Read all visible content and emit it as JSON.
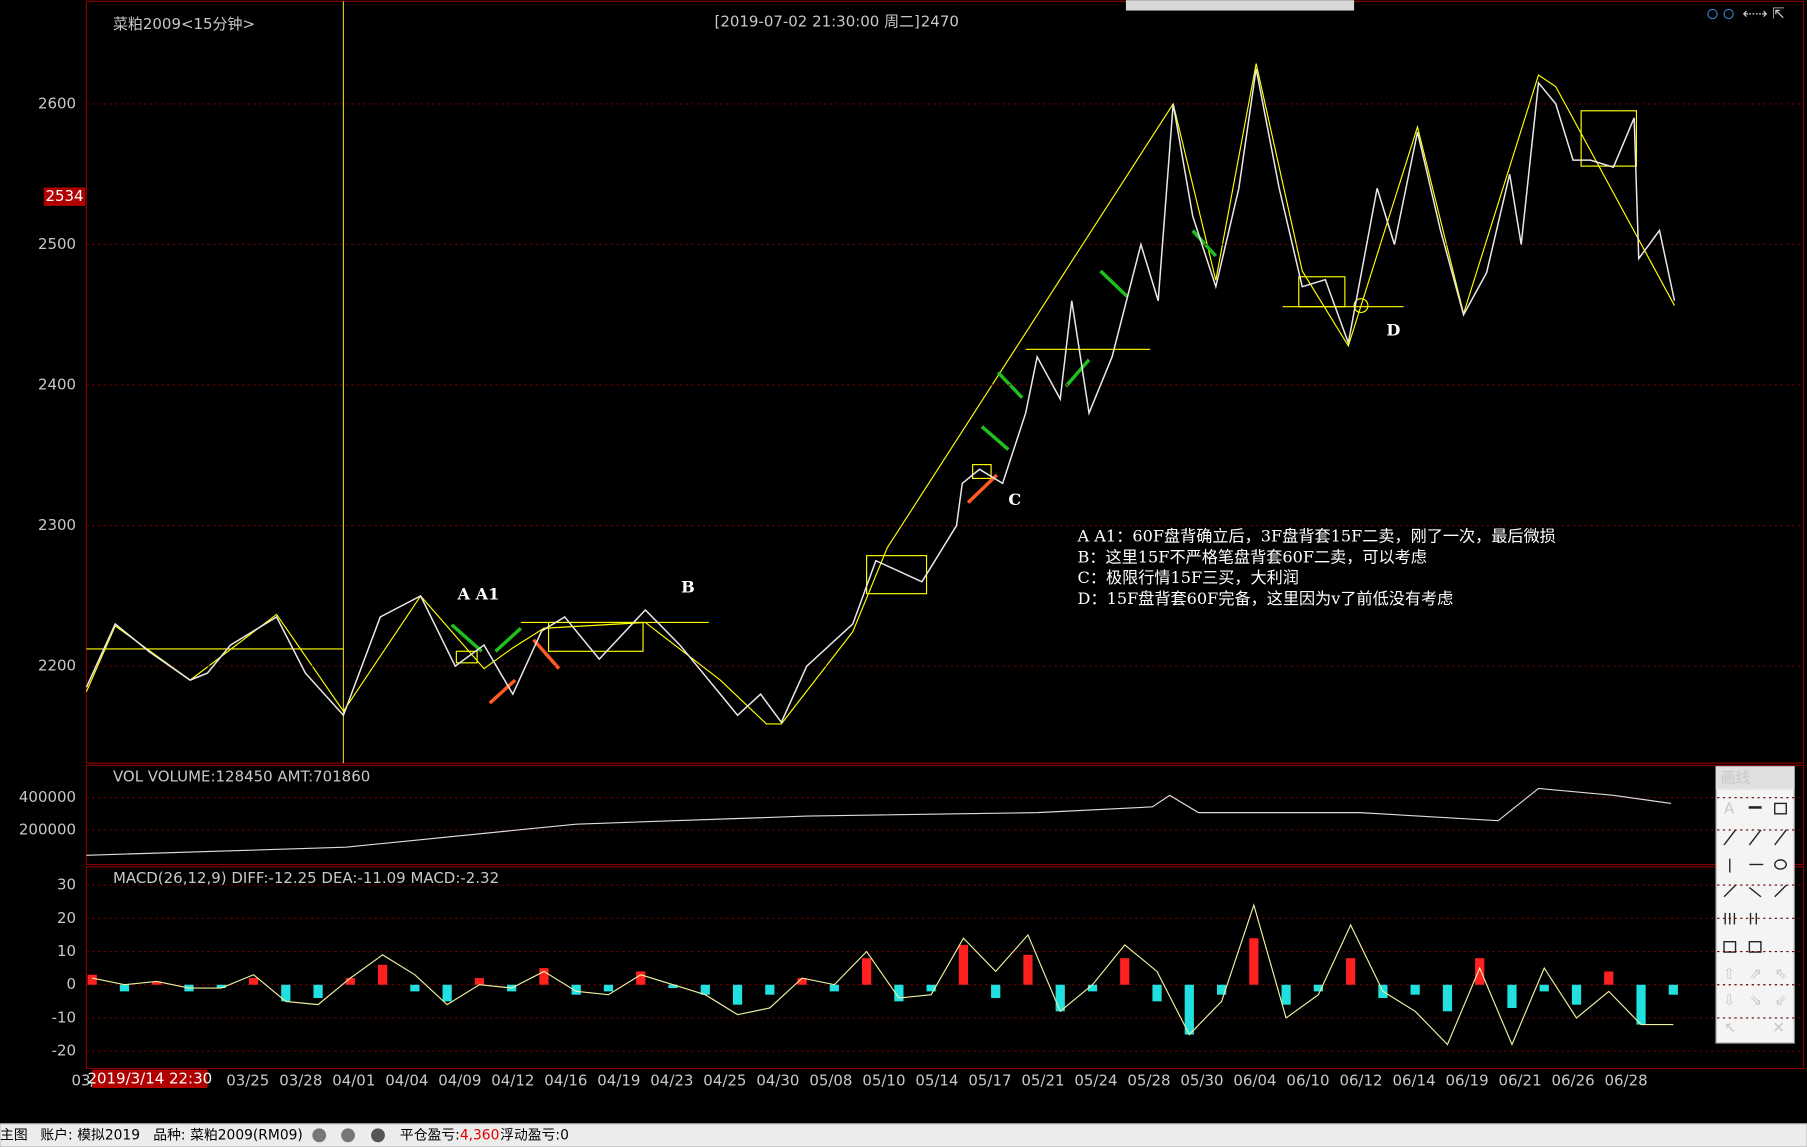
{
  "header": {
    "title": "菜粕2009<15分钟>",
    "cursor_info": "[2019-07-02  21:30:00 周二]",
    "cursor_price": 2470
  },
  "price_panel": {
    "ylim": [
      2131,
      2673
    ],
    "yticks": [
      2200,
      2300,
      2400,
      2500,
      2600
    ],
    "current_price": 2534,
    "xlim": [
      0,
      1490
    ],
    "price_path": {
      "x": [
        0,
        25,
        55,
        90,
        105,
        125,
        165,
        190,
        223,
        255,
        290,
        320,
        345,
        370,
        395,
        415,
        445,
        485,
        515,
        550,
        565,
        585,
        603,
        625,
        665,
        685,
        725,
        755,
        760,
        775,
        795,
        815,
        825,
        845,
        855,
        870,
        890,
        915,
        930,
        943,
        960,
        980,
        1000,
        1015,
        1035,
        1055,
        1075,
        1095,
        1120,
        1135,
        1155,
        1175,
        1195,
        1215,
        1235,
        1245,
        1260,
        1275,
        1290,
        1305,
        1325,
        1343,
        1347,
        1365,
        1378
      ],
      "y": [
        2185,
        2230,
        2210,
        2190,
        2195,
        2215,
        2235,
        2195,
        2165,
        2235,
        2250,
        2200,
        2215,
        2180,
        2225,
        2235,
        2205,
        2240,
        2215,
        2180,
        2165,
        2180,
        2160,
        2200,
        2230,
        2275,
        2260,
        2300,
        2330,
        2340,
        2330,
        2380,
        2420,
        2390,
        2460,
        2380,
        2420,
        2500,
        2460,
        2600,
        2520,
        2470,
        2540,
        2625,
        2540,
        2470,
        2475,
        2430,
        2540,
        2500,
        2580,
        2510,
        2450,
        2480,
        2550,
        2500,
        2615,
        2600,
        2560,
        2560,
        2555,
        2590,
        2490,
        2510,
        2460
      ]
    },
    "labels": [
      "A  A1",
      "B",
      "C",
      "D"
    ],
    "notes": [
      "A A1：60F盘背确立后，3F盘背套15F二卖，刚了一次，最后微损",
      "B：这里15F不严格笔盘背套60F二卖，可以考虑",
      "C：极限行情15F三买，大利润",
      "D：15F盘背套60F完备，这里因为v了前低没有考虑"
    ]
  },
  "volume_panel": {
    "header": "VOL  VOLUME:128450 AMT:701860",
    "ylim": [
      0,
      600000
    ],
    "yticks": [
      200000,
      400000
    ],
    "line": {
      "x": [
        0,
        225,
        425,
        625,
        825,
        925,
        940,
        965,
        1105,
        1225,
        1260,
        1325,
        1375
      ],
      "y": [
        43000,
        93000,
        236000,
        286000,
        307000,
        343000,
        414000,
        307000,
        307000,
        257000,
        457000,
        414000,
        364000
      ]
    }
  },
  "macd_panel": {
    "header": "MACD(26,12,9)  DIFF:-12.25 DEA:-11.09 MACD:-2.32",
    "ylim": [
      -25.2,
      35.5
    ],
    "yticks": [
      30,
      20,
      10,
      0,
      -10,
      -20
    ],
    "x": [
      5,
      33,
      61,
      89,
      117,
      145,
      173,
      201,
      229,
      257,
      285,
      313,
      341,
      369,
      397,
      425,
      453,
      481,
      509,
      537,
      565,
      593,
      621,
      649,
      677,
      705,
      733,
      761,
      789,
      817,
      845,
      873,
      901,
      929,
      957,
      985,
      1013,
      1041,
      1069,
      1097,
      1125,
      1153,
      1181,
      1209,
      1237,
      1265,
      1293,
      1321,
      1349,
      1377
    ],
    "macd": [
      3,
      -2,
      1,
      -2,
      -1,
      2,
      -5,
      -4,
      2,
      6,
      -2,
      -5,
      2,
      -2,
      5,
      -3,
      -2,
      4,
      -1,
      -3,
      -6,
      -3,
      2,
      -2,
      8,
      -5,
      -2,
      12,
      -4,
      9,
      -8,
      -2,
      8,
      -5,
      -15,
      -3,
      14,
      -6,
      -2,
      8,
      -4,
      -3,
      -8,
      8,
      -7,
      -2,
      -6,
      4,
      -12,
      -3
    ],
    "diff": [
      2,
      0,
      1,
      -1,
      -1,
      3,
      -5,
      -6,
      2,
      9,
      3,
      -6,
      0,
      -1,
      4,
      -2,
      -3,
      3,
      0,
      -3,
      -9,
      -7,
      2,
      0,
      10,
      -4,
      -3,
      14,
      4,
      15,
      -8,
      0,
      12,
      4,
      -15,
      -5,
      24,
      -10,
      -3,
      18,
      -2,
      -8,
      -18,
      5,
      -18,
      5,
      -10,
      -2,
      -12,
      -12
    ]
  },
  "x_axis": {
    "cursor_time": "2019/3/14 22:30",
    "dates": [
      "03/",
      "03/25",
      "03/28",
      "04/01",
      "04/04",
      "04/09",
      "04/12",
      "04/16",
      "04/19",
      "04/23",
      "04/25",
      "04/30",
      "05/08",
      "05/10",
      "05/14",
      "05/17",
      "05/21",
      "05/24",
      "05/28",
      "05/30",
      "06/04",
      "06/10",
      "06/12",
      "06/14",
      "06/19",
      "06/21",
      "06/26",
      "06/28"
    ]
  },
  "toolbar": {
    "title": "画线"
  },
  "status_bar": {
    "view": "主图",
    "account_label": "账户:",
    "account": "模拟2019",
    "symbol_label": "品种:",
    "symbol": "菜粕2009(RM09)",
    "closed_pl_label": "平仓盈亏:",
    "closed_pl": "4,360",
    "float_pl_label": "浮动盈亏:",
    "float_pl": "0"
  }
}
